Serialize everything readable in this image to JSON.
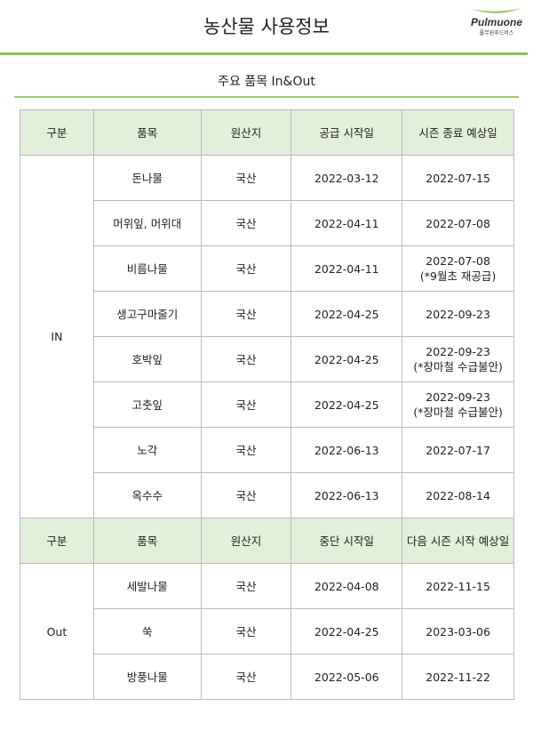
{
  "header": {
    "title": "농산물 사용정보",
    "logo_brand": "Pulmuone",
    "logo_sub": "풀무원푸드머스",
    "accent": "#8cc152"
  },
  "subtitle": "주요 품목 In&Out",
  "in_section": {
    "columns": [
      "구분",
      "품목",
      "원산지",
      "공급 시작일",
      "시즌 종료 예상일"
    ],
    "group": "IN",
    "rows": [
      {
        "item": "돈나물",
        "origin": "국산",
        "start": "2022-03-12",
        "end": "2022-07-15",
        "note": ""
      },
      {
        "item": "머위잎, 머위대",
        "origin": "국산",
        "start": "2022-04-11",
        "end": "2022-07-08",
        "note": ""
      },
      {
        "item": "비름나물",
        "origin": "국산",
        "start": "2022-04-11",
        "end": "2022-07-08",
        "note": "(*9월초 재공급)"
      },
      {
        "item": "생고구마줄기",
        "origin": "국산",
        "start": "2022-04-25",
        "end": "2022-09-23",
        "note": ""
      },
      {
        "item": "호박잎",
        "origin": "국산",
        "start": "2022-04-25",
        "end": "2022-09-23",
        "note": "(*장마철 수급불안)"
      },
      {
        "item": "고춧잎",
        "origin": "국산",
        "start": "2022-04-25",
        "end": "2022-09-23",
        "note": "(*장마철 수급불안)"
      },
      {
        "item": "노각",
        "origin": "국산",
        "start": "2022-06-13",
        "end": "2022-07-17",
        "note": ""
      },
      {
        "item": "옥수수",
        "origin": "국산",
        "start": "2022-06-13",
        "end": "2022-08-14",
        "note": ""
      }
    ]
  },
  "out_section": {
    "columns": [
      "구분",
      "품목",
      "원산지",
      "중단 시작일",
      "다음 시즌 시작 예상일"
    ],
    "group": "Out",
    "rows": [
      {
        "item": "세발나물",
        "origin": "국산",
        "start": "2022-04-08",
        "end": "2022-11-15"
      },
      {
        "item": "쑥",
        "origin": "국산",
        "start": "2022-04-25",
        "end": "2023-03-06"
      },
      {
        "item": "방풍나물",
        "origin": "국산",
        "start": "2022-05-06",
        "end": "2022-11-22"
      }
    ]
  }
}
